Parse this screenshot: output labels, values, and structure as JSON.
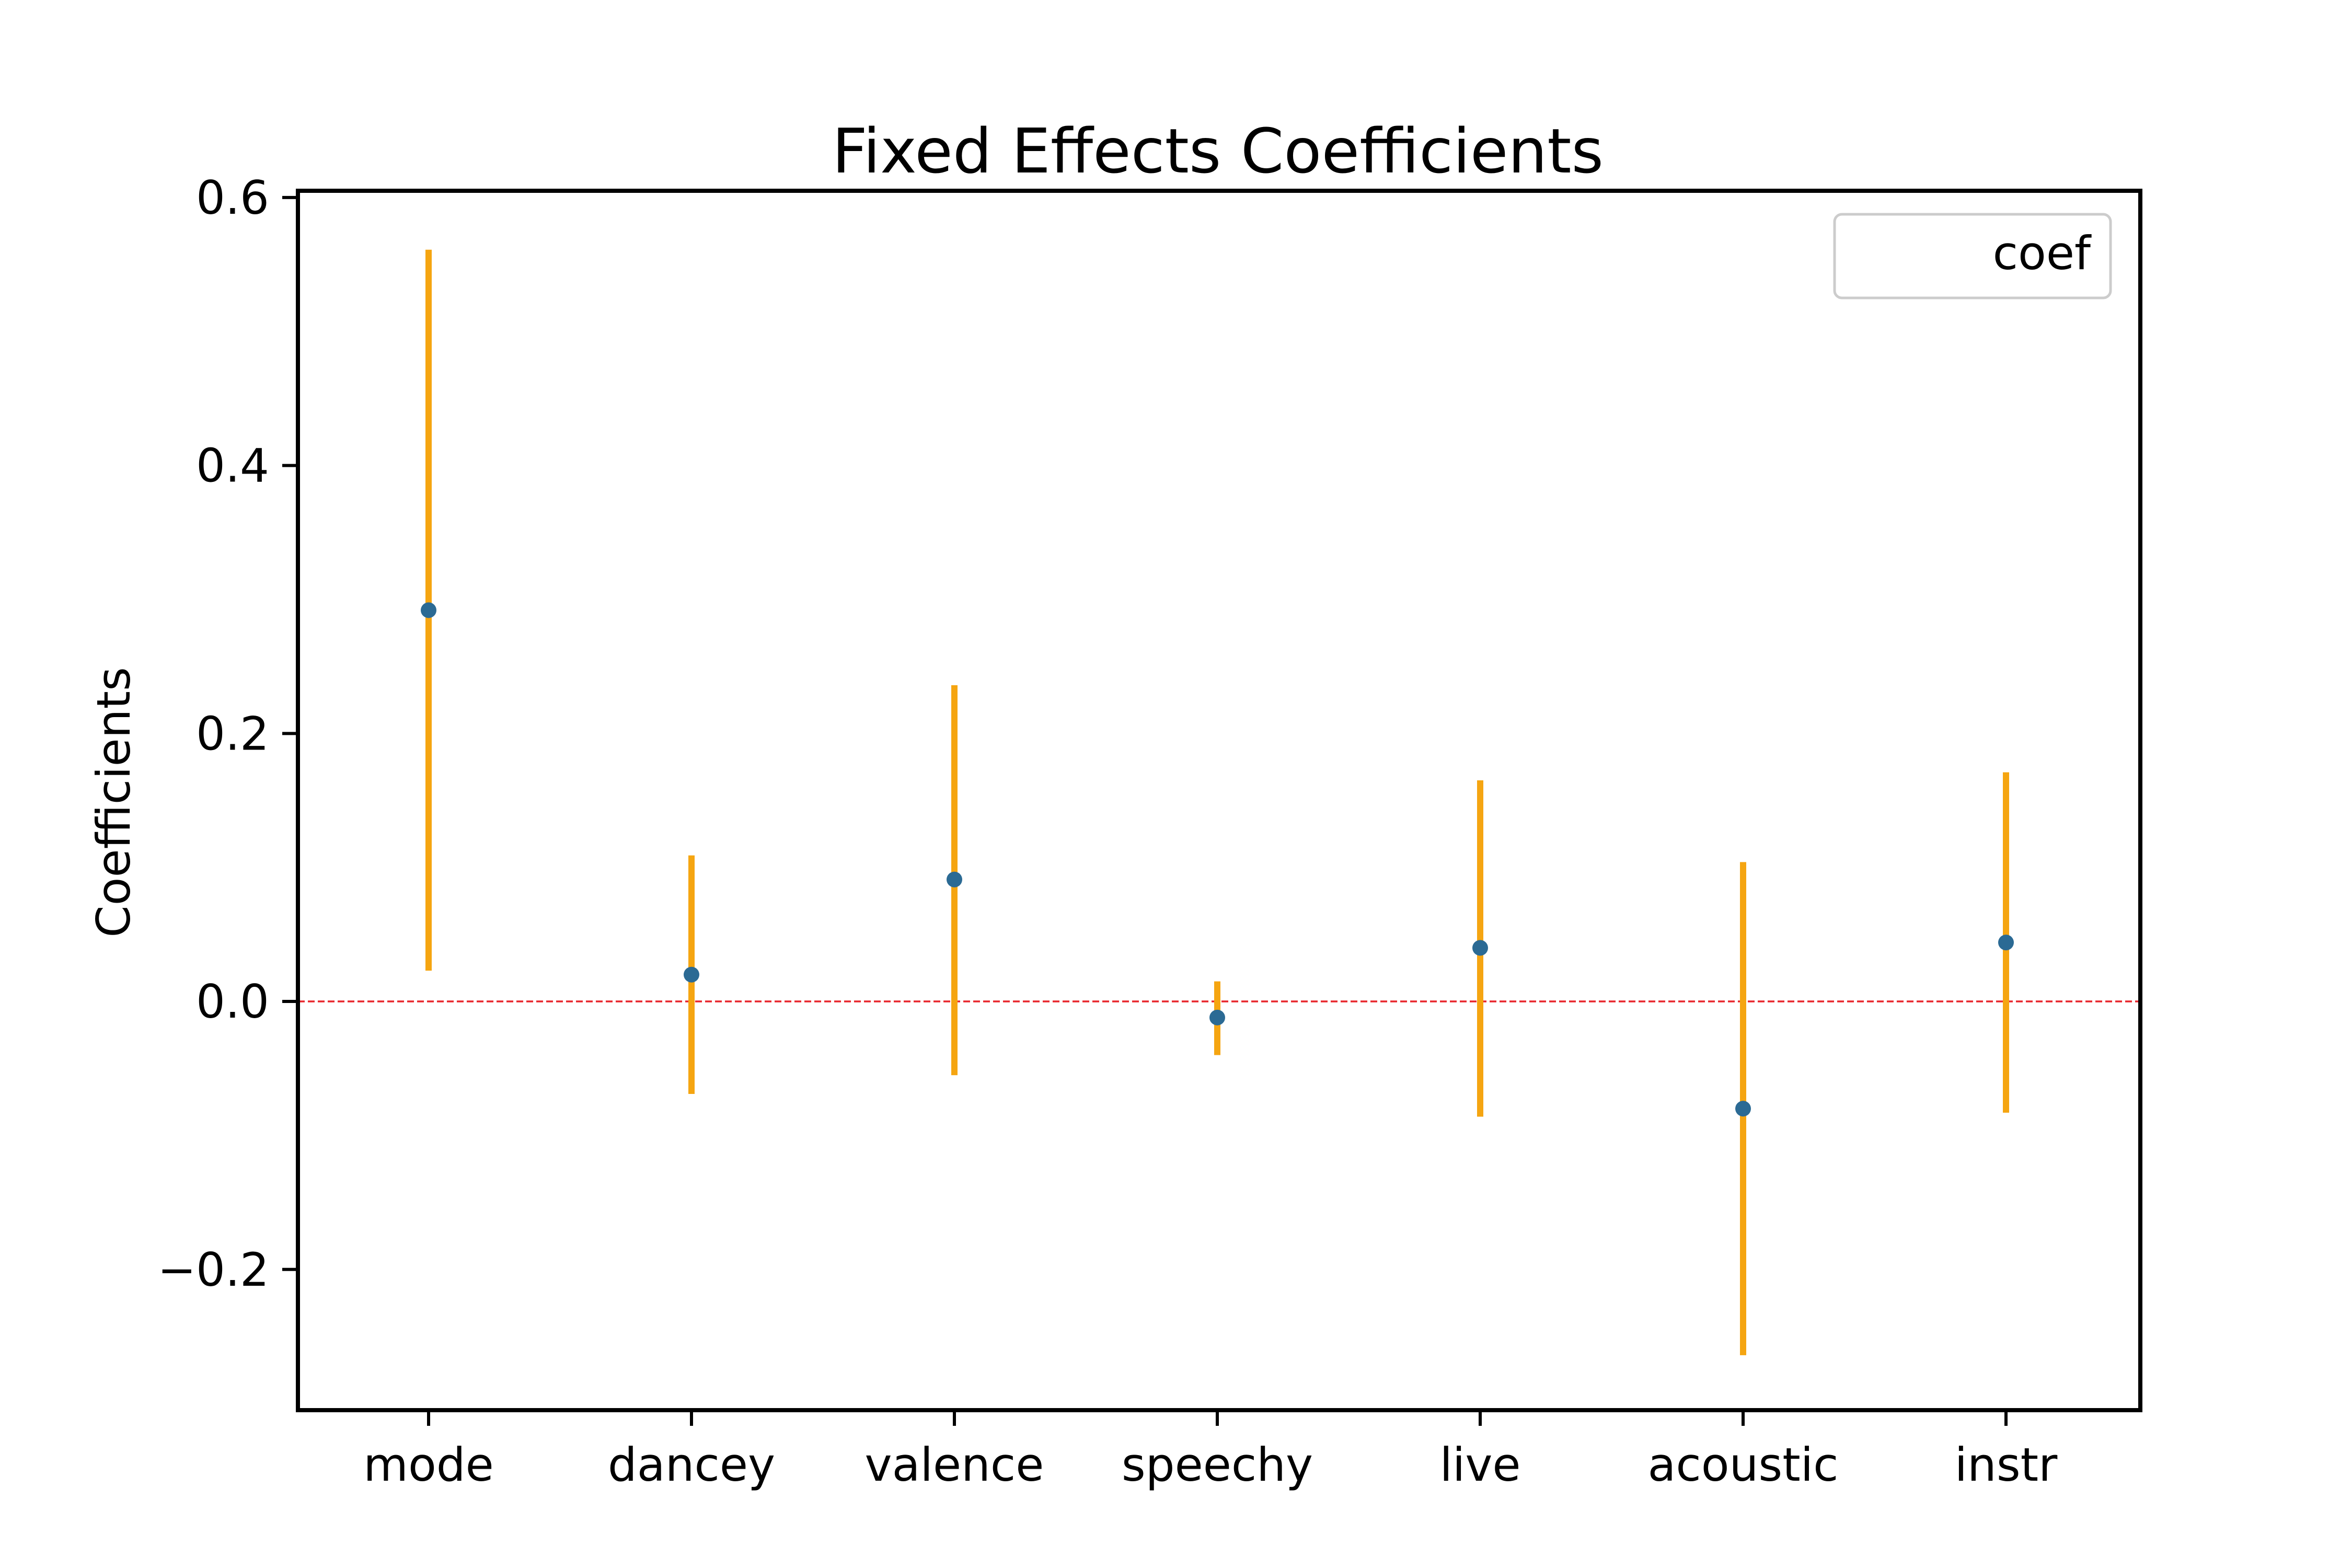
{
  "chart_data": {
    "type": "scatter",
    "title": "Fixed Effects Coefficients",
    "xlabel": "",
    "ylabel": "Coefficients",
    "categories": [
      "mode",
      "dancey",
      "valence",
      "speechy",
      "live",
      "acoustic",
      "instr"
    ],
    "series": [
      {
        "name": "coef",
        "values": [
          0.292,
          0.02,
          0.091,
          -0.012,
          0.04,
          -0.08,
          0.044
        ],
        "ci_lower": [
          0.023,
          -0.069,
          -0.055,
          -0.04,
          -0.086,
          -0.264,
          -0.083
        ],
        "ci_upper": [
          0.561,
          0.109,
          0.236,
          0.015,
          0.165,
          0.104,
          0.171
        ]
      }
    ],
    "reference_line": {
      "y": 0.0,
      "style": "dashed",
      "color": "#e8242b"
    },
    "yticks": [
      -0.2,
      0.0,
      0.2,
      0.4,
      0.6
    ],
    "ytick_labels": [
      "−0.2",
      "0.0",
      "0.2",
      "0.4",
      "0.6"
    ],
    "ylim": [
      -0.305,
      0.605
    ],
    "grid": false,
    "legend_position": "top-right",
    "colors": {
      "point": "#2b6a94",
      "errorbar": "#f5a511",
      "reference": "#e8242b",
      "axes": "#000000",
      "legend_border": "#cccccc"
    }
  }
}
